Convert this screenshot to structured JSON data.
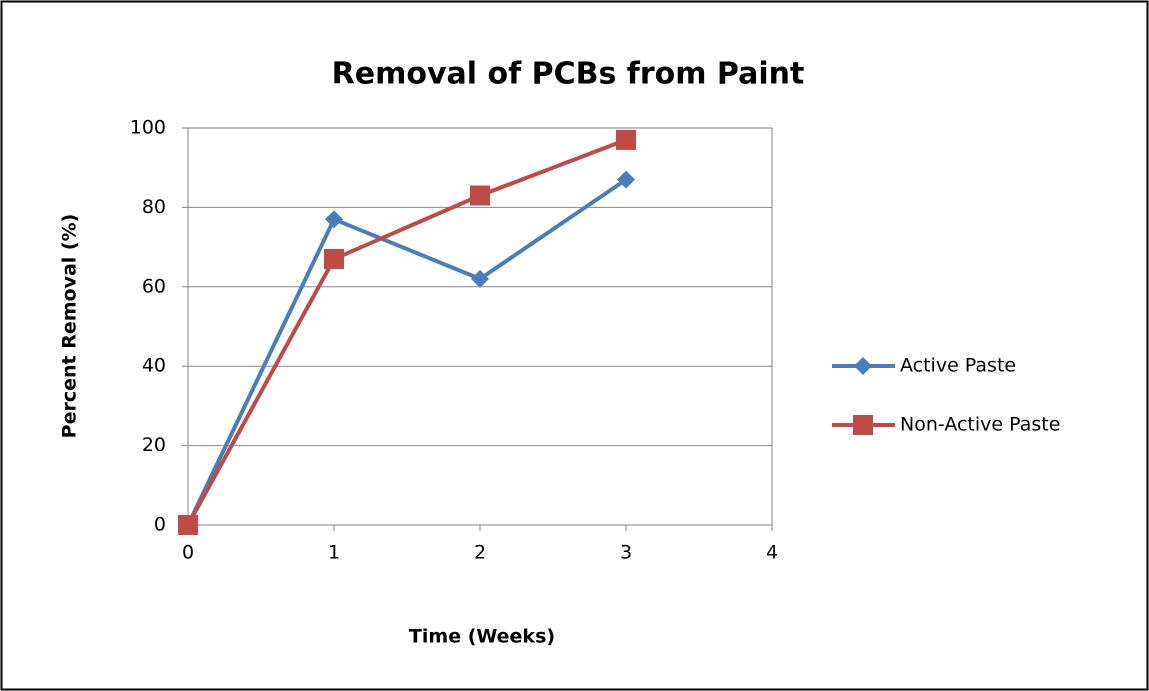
{
  "chart_data": {
    "type": "line",
    "title": "Removal of PCBs from Paint",
    "x_label": "Time (Weeks)",
    "y_label": "Percent Removal (%)",
    "x": [
      0,
      1,
      2,
      3
    ],
    "series": [
      {
        "name": "Active Paste",
        "color": "#4a7ebb",
        "marker": "diamond",
        "values": [
          0,
          77,
          62,
          87
        ]
      },
      {
        "name": "Non-Active Paste",
        "color": "#be4b48",
        "marker": "square",
        "values": [
          0,
          67,
          83,
          97
        ]
      }
    ],
    "xlim": [
      0,
      4
    ],
    "xticks": [
      0,
      1,
      2,
      3,
      4
    ],
    "ylim": [
      0,
      100
    ],
    "yticks": [
      0,
      20,
      40,
      60,
      80,
      100
    ],
    "grid": true,
    "legend": "right"
  }
}
